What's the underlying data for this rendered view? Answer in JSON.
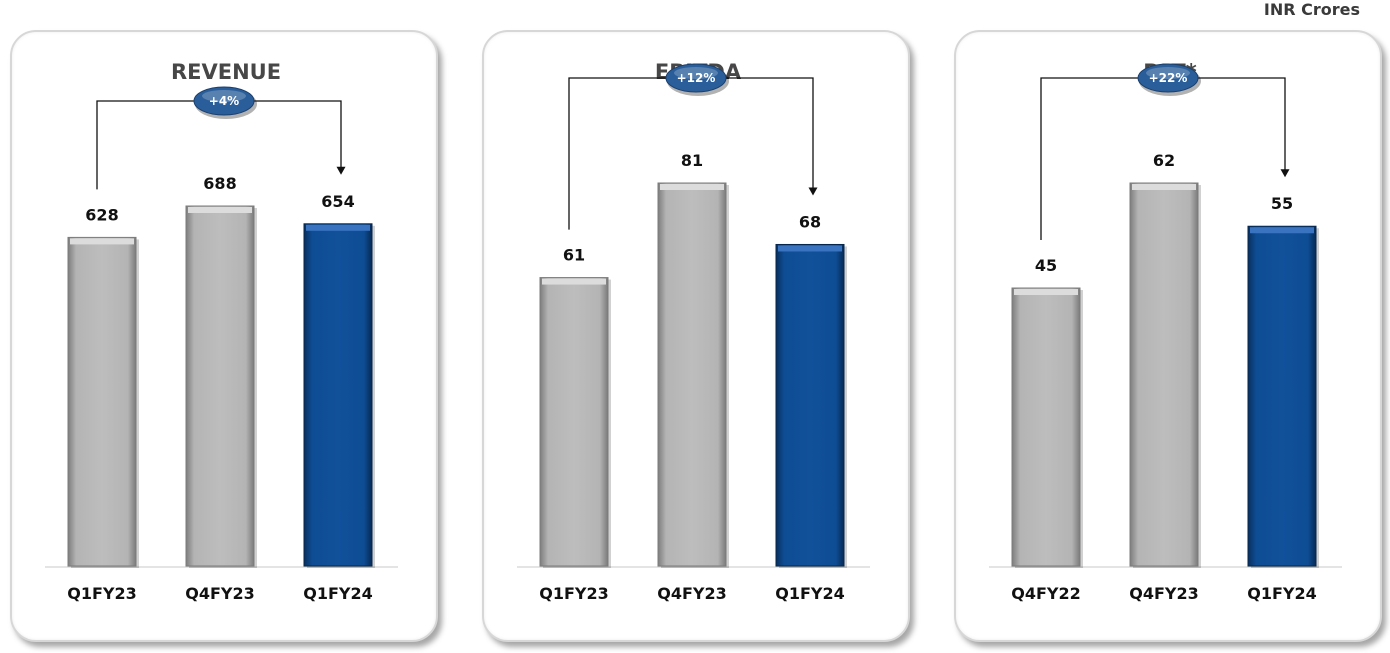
{
  "unit_label": "INR Crores",
  "colors": {
    "grey_bar": "#a9a9a9",
    "blue_bar": "#0d4a90",
    "growth_badge": "#2a5e9a",
    "axis": "#c8c8c8"
  },
  "chart_data": [
    {
      "type": "bar",
      "title": "REVENUE",
      "categories": [
        "Q1FY23",
        "Q4FY23",
        "Q1FY24"
      ],
      "values": [
        628,
        688,
        654
      ],
      "growth_label": "+4%",
      "highlight_index": 2,
      "grid": false
    },
    {
      "type": "bar",
      "title": "EBITDA",
      "categories": [
        "Q1FY23",
        "Q4FY23",
        "Q1FY24"
      ],
      "values": [
        61,
        81,
        68
      ],
      "growth_label": "+12%",
      "highlight_index": 2,
      "grid": false
    },
    {
      "type": "bar",
      "title": "PAT*",
      "categories": [
        "Q4FY22",
        "Q4FY23",
        "Q1FY24"
      ],
      "values": [
        45,
        62,
        55
      ],
      "growth_label": "+22%",
      "highlight_index": 2,
      "grid": false
    }
  ]
}
